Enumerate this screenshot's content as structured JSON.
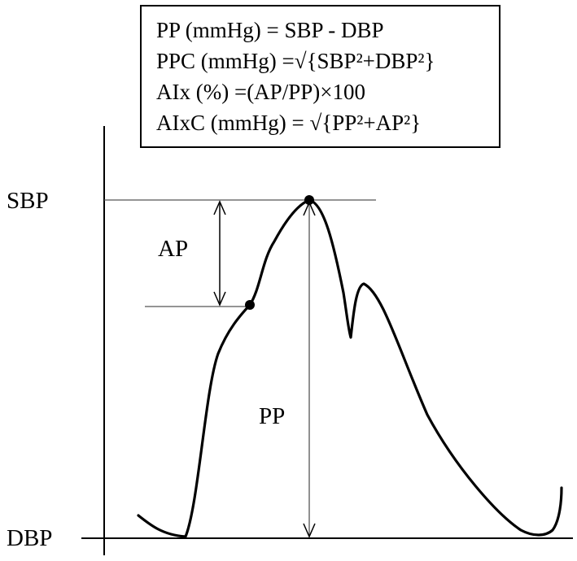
{
  "formulas": [
    "PP (mmHg) = SBP  - DBP",
    "PPC (mmHg) =√{SBP²+DBP²}",
    "AIx (%) =(AP/PP)×100",
    "AIxC (mmHg) = √{PP²+AP²}"
  ],
  "labels": {
    "sbp": "SBP",
    "dbp": "DBP",
    "ap": "AP",
    "pp": "PP"
  }
}
